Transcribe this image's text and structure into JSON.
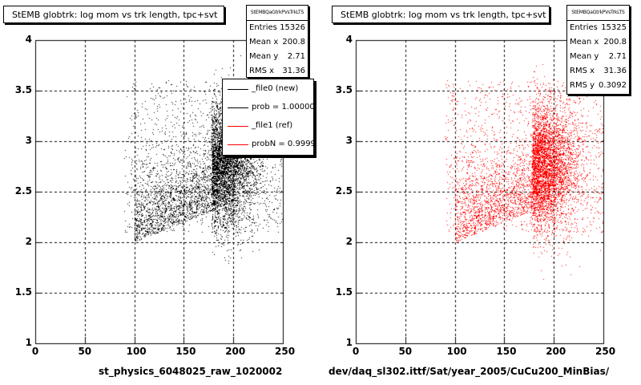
{
  "colors": {
    "new": "#000000",
    "ref": "#ff0000"
  },
  "chart_data": [
    {
      "type": "scatter",
      "title": "StEMB globtrk: log mom vs trk length, tpc+svt",
      "xlabel": "st_physics_6048025_raw_1020002",
      "ylabel": "",
      "xlim": [
        0,
        250
      ],
      "ylim": [
        1,
        4
      ],
      "x_ticks": [
        "0",
        "50",
        "100",
        "150",
        "200",
        "250"
      ],
      "y_ticks": [
        "1",
        "1.5",
        "2",
        "2.5",
        "3",
        "3.5",
        "4"
      ],
      "grid": true,
      "color": "#000000",
      "stats": {
        "name": "StEMBQaGtrkPVsTrkLTS",
        "rows": [
          {
            "key": "Entries",
            "value": "15326"
          },
          {
            "key": "Mean x",
            "value": "200.8"
          },
          {
            "key": "Mean y",
            "value": "2.71"
          },
          {
            "key": "RMS x",
            "value": "31.36"
          }
        ]
      },
      "legend": [
        {
          "label": "_file0 (new)",
          "color": "#000000"
        },
        {
          "label": "prob = 1.000000",
          "color": "#000000"
        },
        {
          "label": "_file1 (ref)",
          "color": "#ff0000"
        },
        {
          "label": "probN = 0.999999",
          "color": "#ff0000"
        }
      ]
    },
    {
      "type": "scatter",
      "title": "StEMB globtrk: log mom vs trk length, tpc+svt",
      "xlabel": "dev/daq_sl302.ittf/Sat/year_2005/CuCu200_MinBias/",
      "ylabel": "",
      "xlim": [
        0,
        250
      ],
      "ylim": [
        1,
        4
      ],
      "x_ticks": [
        "0",
        "50",
        "100",
        "150",
        "200",
        "250"
      ],
      "y_ticks": [
        "1",
        "1.5",
        "2",
        "2.5",
        "3",
        "3.5",
        "4"
      ],
      "grid": true,
      "color": "#ff0000",
      "stats": {
        "name": "StEMBQaGtrkPVsTrkLTS",
        "rows": [
          {
            "key": "Entries",
            "value": "15325"
          },
          {
            "key": "Mean x",
            "value": "200.8"
          },
          {
            "key": "Mean y",
            "value": "2.71"
          },
          {
            "key": "RMS x",
            "value": "31.36"
          },
          {
            "key": "RMS y",
            "value": "0.3092"
          }
        ]
      }
    }
  ]
}
